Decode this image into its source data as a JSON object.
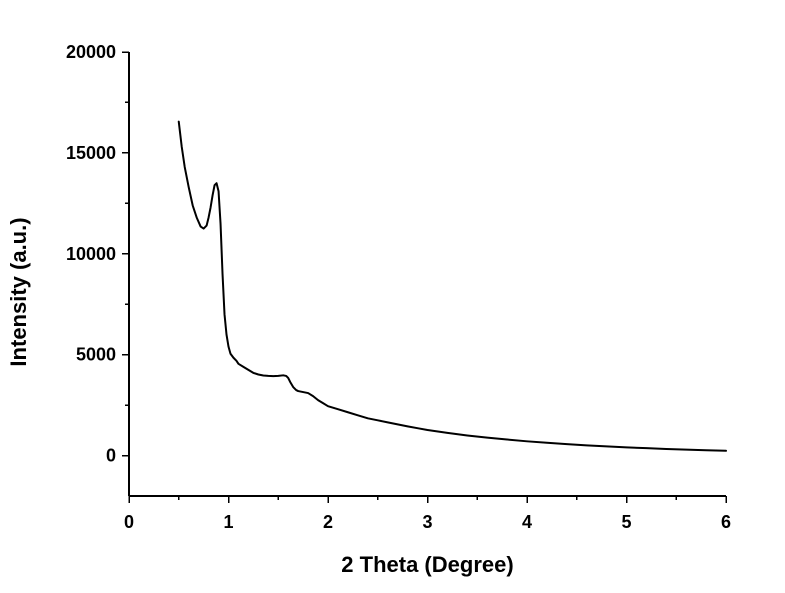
{
  "chart_data": {
    "type": "line",
    "title": "",
    "xlabel": "2 Theta (Degree)",
    "ylabel": "Intensity (a.u.)",
    "xlim": [
      0,
      6
    ],
    "ylim": [
      -2000,
      20000
    ],
    "x_ticks": [
      0,
      1,
      2,
      3,
      4,
      5,
      6
    ],
    "y_ticks": [
      0,
      5000,
      10000,
      15000,
      20000
    ],
    "x_tick_labels": [
      "0",
      "1",
      "2",
      "3",
      "4",
      "5",
      "6"
    ],
    "y_tick_labels": [
      "0",
      "5000",
      "10000",
      "15000",
      "20000"
    ],
    "grid": false,
    "legend": "none",
    "series": [
      {
        "color": "#000000",
        "x": [
          0.5,
          0.53,
          0.56,
          0.6,
          0.64,
          0.68,
          0.72,
          0.75,
          0.78,
          0.8,
          0.82,
          0.84,
          0.86,
          0.88,
          0.9,
          0.92,
          0.94,
          0.96,
          0.98,
          1.0,
          1.02,
          1.05,
          1.08,
          1.1,
          1.15,
          1.2,
          1.25,
          1.3,
          1.35,
          1.4,
          1.45,
          1.5,
          1.55,
          1.58,
          1.6,
          1.62,
          1.65,
          1.68,
          1.7,
          1.75,
          1.8,
          1.85,
          1.9,
          1.95,
          2.0,
          2.1,
          2.2,
          2.3,
          2.4,
          2.5,
          2.6,
          2.7,
          2.8,
          2.9,
          3.0,
          3.2,
          3.4,
          3.6,
          3.8,
          4.0,
          4.2,
          4.4,
          4.6,
          4.8,
          5.0,
          5.2,
          5.4,
          5.6,
          5.8,
          6.0
        ],
        "y": [
          16550,
          15300,
          14300,
          13300,
          12400,
          11800,
          11350,
          11250,
          11400,
          11800,
          12300,
          12900,
          13400,
          13500,
          13100,
          11500,
          9000,
          7000,
          6000,
          5400,
          5050,
          4850,
          4700,
          4550,
          4400,
          4250,
          4100,
          4020,
          3970,
          3950,
          3940,
          3950,
          3980,
          3950,
          3850,
          3650,
          3400,
          3250,
          3200,
          3150,
          3100,
          2950,
          2750,
          2600,
          2450,
          2300,
          2150,
          2000,
          1850,
          1750,
          1650,
          1550,
          1450,
          1360,
          1270,
          1130,
          1000,
          890,
          800,
          710,
          640,
          570,
          510,
          460,
          410,
          370,
          330,
          300,
          270,
          240
        ]
      }
    ]
  }
}
